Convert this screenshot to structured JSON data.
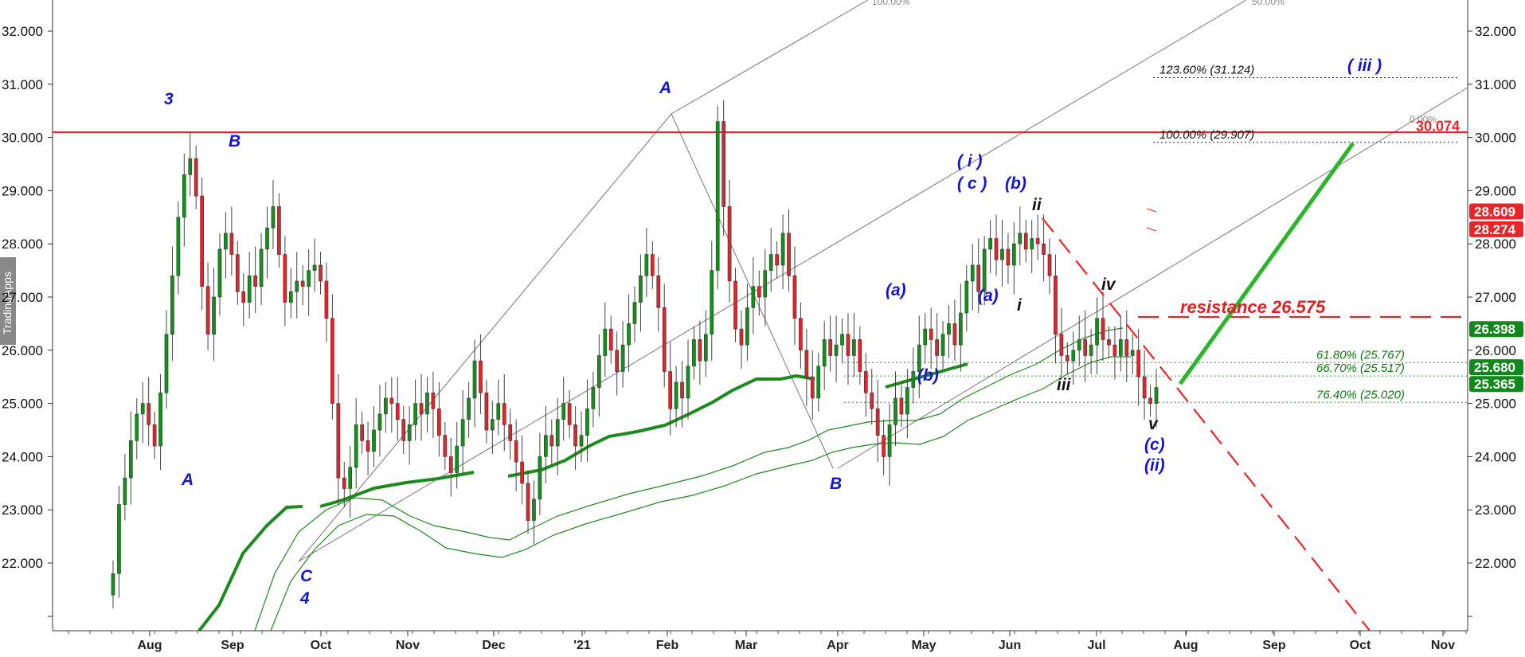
{
  "watermark": "TradingApps",
  "chart_data": {
    "type": "candlestick",
    "title": "",
    "ylim": [
      21.0,
      32.6
    ],
    "yticks": [
      22.0,
      23.0,
      24.0,
      25.0,
      26.0,
      27.0,
      28.0,
      29.0,
      30.0,
      31.0,
      32.0
    ],
    "ytick_labels": [
      "22.000",
      "23.000",
      "24.000",
      "25.000",
      "26.000",
      "27.000",
      "28.000",
      "29.000",
      "30.000",
      "31.000",
      "32.000"
    ],
    "months": [
      "Aug",
      "Sep",
      "Oct",
      "Nov",
      "Dec",
      "'21",
      "Feb",
      "Mar",
      "Apr",
      "May",
      "Jun",
      "Jul",
      "Aug",
      "Sep",
      "Oct",
      "Nov"
    ],
    "price_series_closes": [
      21.8,
      23.1,
      23.6,
      24.3,
      24.8,
      25.0,
      24.6,
      24.2,
      25.2,
      26.3,
      27.4,
      28.5,
      29.3,
      29.6,
      28.9,
      27.2,
      26.3,
      27.0,
      27.9,
      28.2,
      27.8,
      27.1,
      26.9,
      27.4,
      27.2,
      27.9,
      28.3,
      28.7,
      27.8,
      26.9,
      27.1,
      27.3,
      27.2,
      27.5,
      27.6,
      27.3,
      26.6,
      25.0,
      23.6,
      23.4,
      23.8,
      24.6,
      24.3,
      24.1,
      24.5,
      24.8,
      25.1,
      25.0,
      24.7,
      24.3,
      24.6,
      25.0,
      24.8,
      25.2,
      24.9,
      24.4,
      24.0,
      23.7,
      24.2,
      24.7,
      25.1,
      25.8,
      25.2,
      24.5,
      24.7,
      25.0,
      24.6,
      24.3,
      23.9,
      23.5,
      22.8,
      23.2,
      24.0,
      24.4,
      24.2,
      24.7,
      25.0,
      24.6,
      24.2,
      24.4,
      24.9,
      25.3,
      25.9,
      26.4,
      26.0,
      25.6,
      26.1,
      26.5,
      26.9,
      27.4,
      27.8,
      27.4,
      26.8,
      25.6,
      24.9,
      25.4,
      25.1,
      25.7,
      26.2,
      25.8,
      26.3,
      27.5,
      30.3,
      28.7,
      27.3,
      26.4,
      26.1,
      26.8,
      27.2,
      27.0,
      27.5,
      27.8,
      27.6,
      28.2,
      27.4,
      26.6,
      26.0,
      25.5,
      25.1,
      25.7,
      26.2,
      25.9,
      26.1,
      26.3,
      25.9,
      26.2,
      25.6,
      25.2,
      24.9,
      24.4,
      24.0,
      24.6,
      25.1,
      24.8,
      25.3,
      25.6,
      26.1,
      26.4,
      26.2,
      25.9,
      26.3,
      26.5,
      26.1,
      26.7,
      27.3,
      27.6,
      27.1,
      27.9,
      28.1,
      27.7,
      27.9,
      27.6,
      28.0,
      28.2,
      27.9,
      28.1,
      28.0,
      27.8,
      27.4,
      26.3,
      25.9,
      25.8,
      26.0,
      26.2,
      25.9,
      26.1,
      26.6,
      26.2,
      26.1,
      25.9,
      26.2,
      25.9,
      26.0,
      25.5,
      25.1,
      25.0,
      25.3
    ]
  },
  "horizontal_lines": {
    "level_red": "30.074"
  },
  "price_tags": [
    {
      "label": "30.074",
      "color": "#e8262a",
      "style": "text"
    },
    {
      "label": "28.609",
      "color": "#e8262a",
      "style": "box"
    },
    {
      "label": "28.274",
      "color": "#e8262a",
      "style": "box"
    },
    {
      "label": "26.398",
      "color": "#12871b",
      "style": "box"
    },
    {
      "label": "25.680",
      "color": "#12871b",
      "style": "box"
    },
    {
      "label": "25.365",
      "color": "#12871b",
      "style": "box"
    }
  ],
  "fib_levels": [
    {
      "label": "123.60% (31.124)",
      "value": 31.124,
      "color": "black"
    },
    {
      "label": "100.00% (29.907)",
      "value": 29.907,
      "color": "black"
    },
    {
      "label": "61.80% (25.767)",
      "value": 25.767,
      "color": "green"
    },
    {
      "label": "66.70% (25.517)",
      "value": 25.517,
      "color": "green"
    },
    {
      "label": "76.40% (25.020)",
      "value": 25.02,
      "color": "green"
    }
  ],
  "fan_labels": [
    "100.00%",
    "50.00%",
    "0.00%"
  ],
  "resistance_label": "resistance 26.575",
  "wave_labels": {
    "w3": "3",
    "wB1": "B",
    "wA1": "A",
    "wC4_c": "C",
    "wC4_4": "4",
    "wA2": "A",
    "wB2": "B",
    "wi": "( i )",
    "wc": "( c )",
    "wb": "(b)",
    "wii": "ii",
    "wa1": "(a)",
    "wa2": "(a)",
    "wi_small": "i",
    "wbb": "(b)",
    "wiv": "iv",
    "wiii": "iii",
    "wv": "v",
    "wc2": "(c)",
    "wii2": "(ii)",
    "wiii_big": "( iii )"
  }
}
